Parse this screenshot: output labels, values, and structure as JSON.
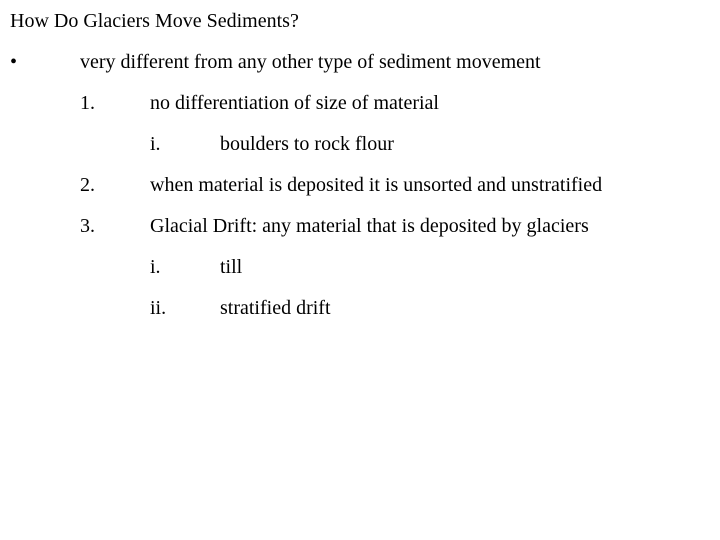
{
  "title": "How Do Glaciers Move Sediments?",
  "bullet": "•",
  "level1": {
    "text": "very different from any other type of sediment movement"
  },
  "items": [
    {
      "num": "1.",
      "text": "no differentiation of size of material",
      "sub": [
        {
          "roman": "i.",
          "text": "boulders to rock flour"
        }
      ]
    },
    {
      "num": "2.",
      "text": "when material is deposited it is unsorted and unstratified",
      "sub": []
    },
    {
      "num": "3.",
      "text": "Glacial Drift: any material that is deposited by glaciers",
      "sub": [
        {
          "roman": "i.",
          "text": "till"
        },
        {
          "roman": "ii.",
          "text": "stratified drift"
        }
      ]
    }
  ],
  "colors": {
    "background": "#ffffff",
    "text": "#000000"
  },
  "typography": {
    "family": "Times New Roman",
    "size_pt": 15
  }
}
